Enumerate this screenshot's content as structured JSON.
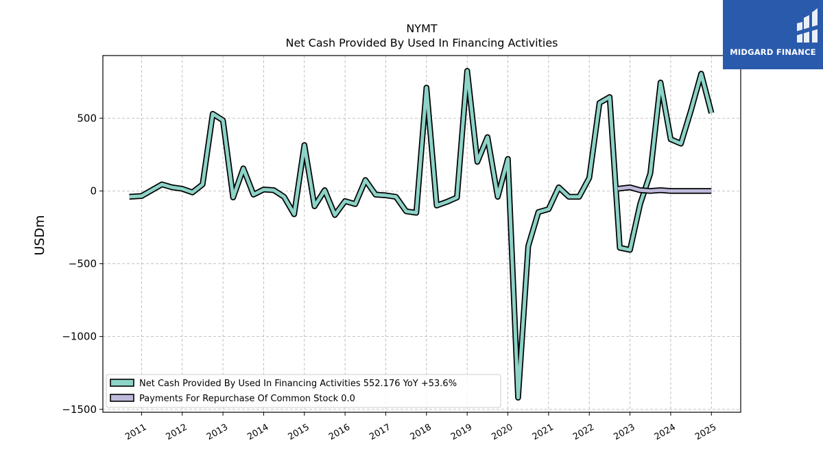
{
  "chart_data": {
    "type": "line",
    "title": "NYMT",
    "subtitle": "Net Cash Provided By Used In Financing Activities",
    "ylabel": "USDm",
    "xlabel": "",
    "ylim": [
      -1520,
      930
    ],
    "xlim": [
      2010.05,
      2025.72
    ],
    "yticks": [
      500,
      0,
      -500,
      -1000,
      -1500
    ],
    "ytick_labels": [
      "500",
      "0",
      "−500",
      "−1000",
      "−1500"
    ],
    "xticks": [
      2011,
      2012,
      2013,
      2014,
      2015,
      2016,
      2017,
      2018,
      2019,
      2020,
      2021,
      2022,
      2023,
      2024,
      2025
    ],
    "xtick_labels": [
      "2011",
      "2012",
      "2013",
      "2014",
      "2015",
      "2016",
      "2017",
      "2018",
      "2019",
      "2020",
      "2021",
      "2022",
      "2023",
      "2024",
      "2025"
    ],
    "grid": true,
    "legend_position": "lower-left",
    "series": [
      {
        "name": "Net Cash Provided By Used In Financing Activities",
        "legend_label": "Net Cash Provided By Used In Financing Activities  552.176 YoY +53.6%",
        "color": "#8dd3c7",
        "points": [
          [
            2010.7,
            -40
          ],
          [
            2011.0,
            -35
          ],
          [
            2011.25,
            5
          ],
          [
            2011.5,
            45
          ],
          [
            2011.75,
            25
          ],
          [
            2012.0,
            15
          ],
          [
            2012.25,
            -10
          ],
          [
            2012.5,
            45
          ],
          [
            2012.75,
            530
          ],
          [
            2013.0,
            485
          ],
          [
            2013.25,
            -45
          ],
          [
            2013.5,
            155
          ],
          [
            2013.75,
            -25
          ],
          [
            2014.0,
            10
          ],
          [
            2014.25,
            5
          ],
          [
            2014.5,
            -40
          ],
          [
            2014.75,
            -160
          ],
          [
            2015.0,
            315
          ],
          [
            2015.25,
            -105
          ],
          [
            2015.5,
            5
          ],
          [
            2015.75,
            -165
          ],
          [
            2016.0,
            -70
          ],
          [
            2016.25,
            -90
          ],
          [
            2016.5,
            75
          ],
          [
            2016.75,
            -25
          ],
          [
            2017.0,
            -30
          ],
          [
            2017.25,
            -40
          ],
          [
            2017.5,
            -140
          ],
          [
            2017.75,
            -150
          ],
          [
            2018.0,
            710
          ],
          [
            2018.25,
            -100
          ],
          [
            2018.5,
            -75
          ],
          [
            2018.75,
            -45
          ],
          [
            2019.0,
            825
          ],
          [
            2019.25,
            200
          ],
          [
            2019.5,
            370
          ],
          [
            2019.75,
            -40
          ],
          [
            2020.0,
            220
          ],
          [
            2020.25,
            -1420
          ],
          [
            2020.5,
            -380
          ],
          [
            2020.75,
            -145
          ],
          [
            2021.0,
            -125
          ],
          [
            2021.25,
            25
          ],
          [
            2021.5,
            -40
          ],
          [
            2021.75,
            -40
          ],
          [
            2022.0,
            90
          ],
          [
            2022.25,
            605
          ],
          [
            2022.5,
            645
          ],
          [
            2022.75,
            -390
          ],
          [
            2023.0,
            -405
          ],
          [
            2023.25,
            -90
          ],
          [
            2023.5,
            120
          ],
          [
            2023.75,
            745
          ],
          [
            2024.0,
            355
          ],
          [
            2024.25,
            325
          ],
          [
            2024.5,
            555
          ],
          [
            2024.75,
            805
          ],
          [
            2025.0,
            535
          ]
        ]
      },
      {
        "name": "Payments For Repurchase Of Common Stock",
        "legend_label": "Payments For Repurchase Of Common Stock  0.0",
        "color": "#bebada",
        "points": [
          [
            2022.7,
            15
          ],
          [
            2023.0,
            25
          ],
          [
            2023.25,
            5
          ],
          [
            2023.5,
            0
          ],
          [
            2023.75,
            5
          ],
          [
            2024.0,
            0
          ],
          [
            2024.25,
            0
          ],
          [
            2024.5,
            0
          ],
          [
            2024.75,
            0
          ],
          [
            2025.0,
            0
          ]
        ]
      }
    ]
  },
  "logo": {
    "text": "MIDGARD FINANCE",
    "background": "#2a5aac"
  }
}
